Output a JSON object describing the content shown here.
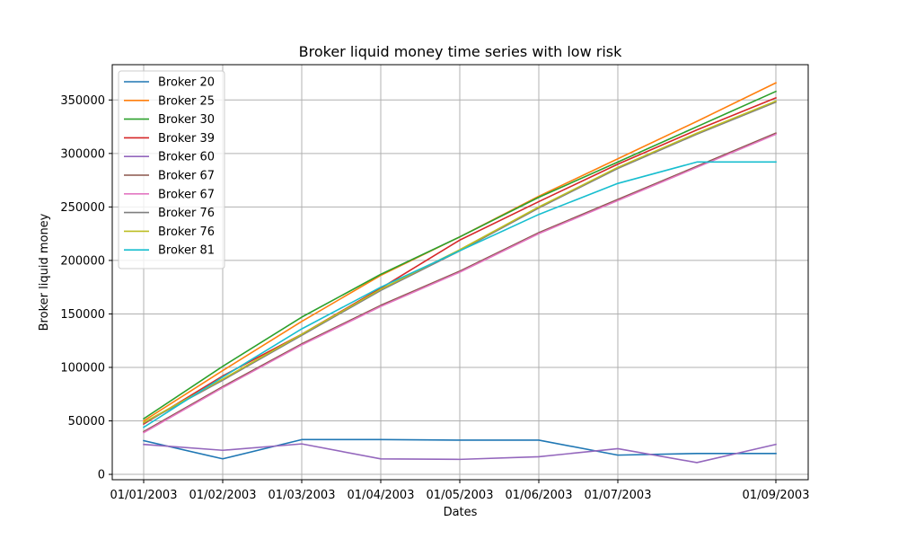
{
  "chart_data": {
    "type": "line",
    "title": "Broker liquid money time series with low risk",
    "xlabel": "Dates",
    "ylabel": "Broker liquid money",
    "x": [
      "01/01/2003",
      "01/02/2003",
      "01/03/2003",
      "01/04/2003",
      "01/05/2003",
      "01/06/2003",
      "01/07/2003",
      "01/08/2003",
      "01/09/2003"
    ],
    "x_tick_labels": [
      "01/01/2003",
      "01/02/2003",
      "01/03/2003",
      "01/04/2003",
      "01/05/2003",
      "01/06/2003",
      "01/07/2003",
      "",
      "01/09/2003"
    ],
    "y_ticks": [
      0,
      50000,
      100000,
      150000,
      200000,
      250000,
      300000,
      350000
    ],
    "y_tick_labels": [
      "0",
      "50000",
      "100000",
      "150000",
      "200000",
      "250000",
      "300000",
      "350000"
    ],
    "ylim": [
      -5000,
      383000
    ],
    "grid": true,
    "legend_position": "top-left",
    "series": [
      {
        "name": "Broker 20",
        "color": "#1f77b4",
        "values": [
          31500,
          14500,
          32500,
          32500,
          32000,
          32000,
          18000,
          19500,
          19500
        ]
      },
      {
        "name": "Broker 25",
        "color": "#ff7f0e",
        "values": [
          50000,
          97000,
          143000,
          186000,
          222000,
          260000,
          295000,
          330000,
          366000
        ]
      },
      {
        "name": "Broker 30",
        "color": "#2ca02c",
        "values": [
          52000,
          101000,
          147000,
          187000,
          222000,
          259000,
          292000,
          325000,
          358000
        ]
      },
      {
        "name": "Broker 39",
        "color": "#d62728",
        "values": [
          47000,
          92000,
          131000,
          174000,
          219000,
          255000,
          290000,
          322000,
          352000
        ]
      },
      {
        "name": "Broker 60",
        "color": "#9467bd",
        "values": [
          28000,
          22500,
          28500,
          14500,
          14000,
          16500,
          24000,
          11000,
          28000
        ]
      },
      {
        "name": "Broker 67",
        "color": "#8c564b",
        "values": [
          40000,
          82000,
          122000,
          158000,
          190000,
          226000,
          257000,
          288000,
          319000
        ]
      },
      {
        "name": "Broker 67",
        "color": "#e377c2",
        "values": [
          39000,
          81000,
          121000,
          157000,
          189000,
          225000,
          256000,
          287000,
          318000
        ]
      },
      {
        "name": "Broker 76",
        "color": "#7f7f7f",
        "values": [
          48000,
          88000,
          130000,
          172000,
          209000,
          249000,
          286000,
          318000,
          348000
        ]
      },
      {
        "name": "Broker 76",
        "color": "#bcbd22",
        "values": [
          48500,
          89000,
          131000,
          173000,
          210000,
          250000,
          287000,
          319000,
          349000
        ]
      },
      {
        "name": "Broker 81",
        "color": "#17becf",
        "values": [
          44000,
          91000,
          136000,
          175000,
          209000,
          243000,
          272000,
          292000,
          292000
        ]
      }
    ]
  }
}
